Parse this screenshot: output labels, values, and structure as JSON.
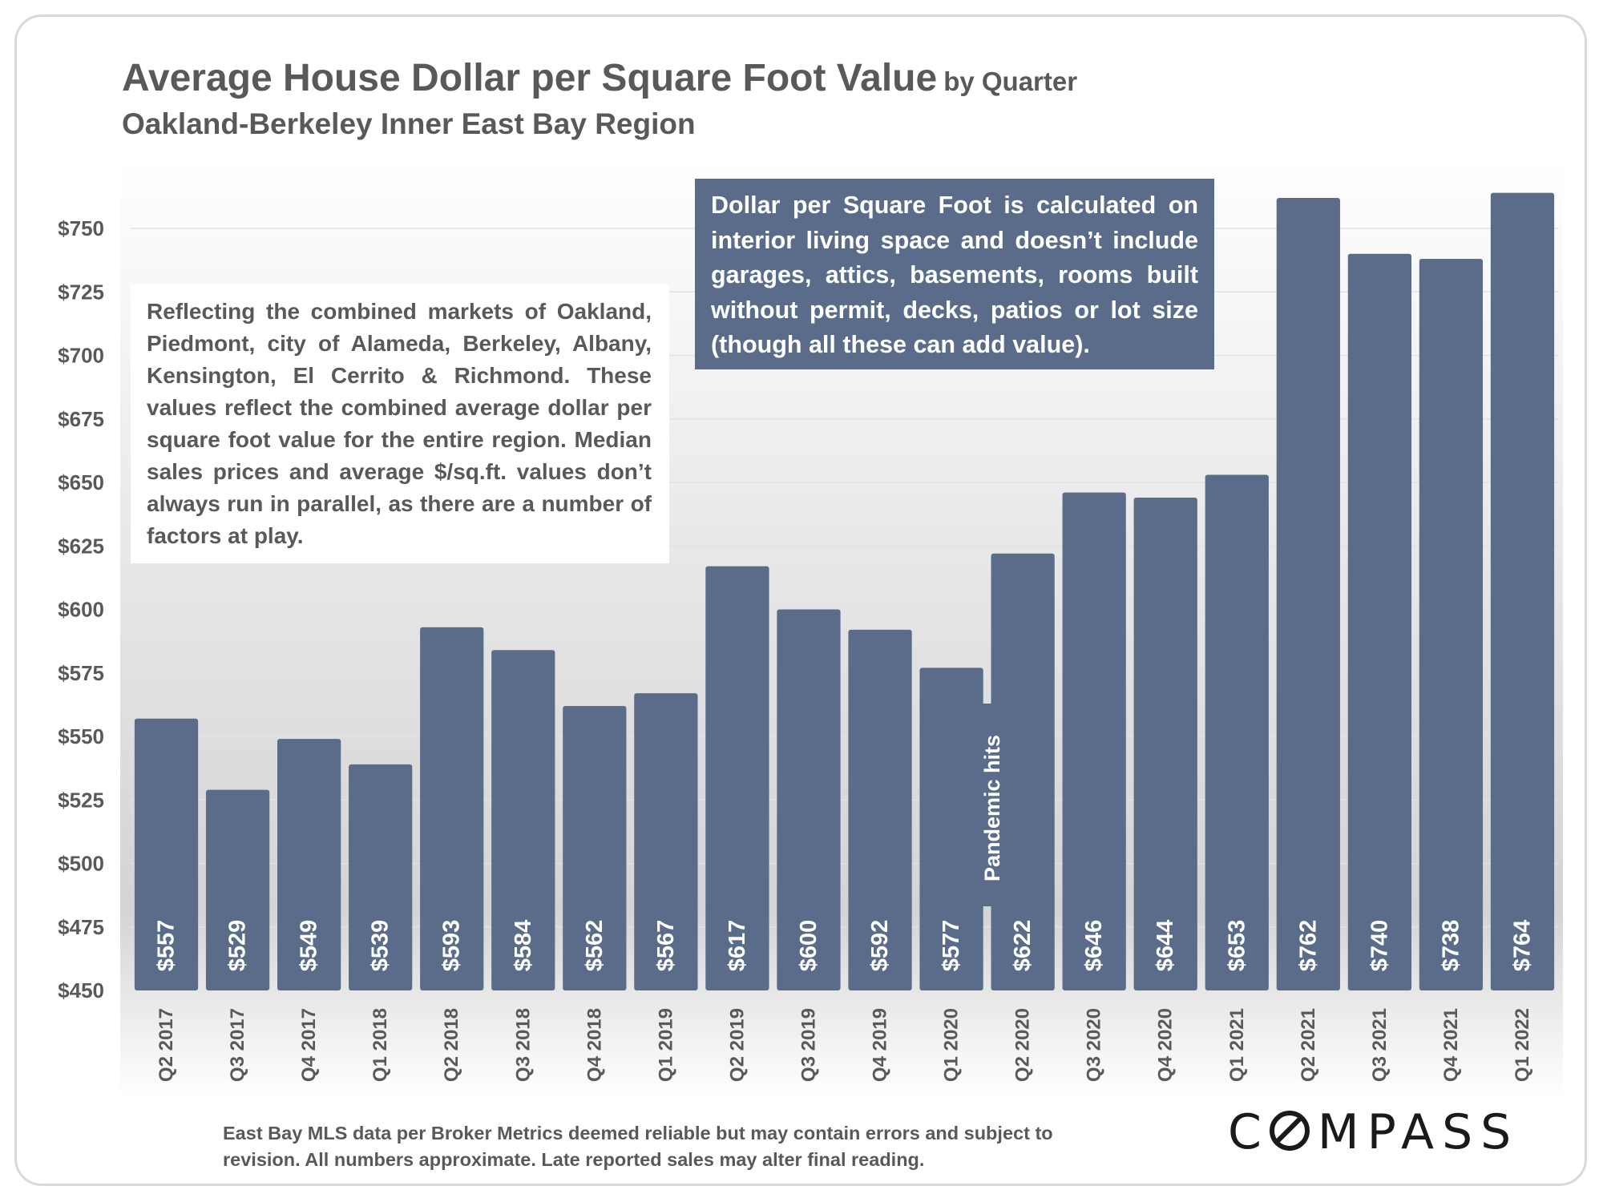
{
  "title": {
    "main": "Average House Dollar per Square Foot Value",
    "suffix": "by Quarter",
    "subtitle": "Oakland-Berkeley Inner East Bay Region"
  },
  "notes": {
    "left": "Reflecting the combined markets of Oakland, Piedmont, city of Alameda, Berkeley, Albany, Kensington, El Cerrito & Richmond. These values reflect the combined average dollar per square foot value for the entire region. Median sales prices and average $/sq.ft. values don’t always run in parallel, as there are a number of factors at play.",
    "right": "Dollar per Square Foot is calculated on interior living space and doesn’t include garages, attics, basements, rooms built without permit, decks, patios or lot size (though all these can add value)."
  },
  "annotation": "Pandemic hits",
  "footer": "East Bay MLS data per Broker Metrics deemed reliable but may contain errors and subject to revision. All numbers approximate. Late reported sales may alter final reading.",
  "logo": "COMPASS",
  "colors": {
    "bar": "#5a6c8a",
    "text": "#595959",
    "background_gradient": [
      "#ffffff",
      "#d6d6d6"
    ]
  },
  "chart_data": {
    "type": "bar",
    "title": "Average House Dollar per Square Foot Value by Quarter",
    "subtitle": "Oakland-Berkeley Inner East Bay Region",
    "categories": [
      "Q2 2017",
      "Q3 2017",
      "Q4 2017",
      "Q1 2018",
      "Q2 2018",
      "Q3 2018",
      "Q4 2018",
      "Q1 2019",
      "Q2 2019",
      "Q3 2019",
      "Q4 2019",
      "Q1 2020",
      "Q2 2020",
      "Q3 2020",
      "Q4 2020",
      "Q1 2021",
      "Q2 2021",
      "Q3 2021",
      "Q4 2021",
      "Q1 2022"
    ],
    "values": [
      557,
      529,
      549,
      539,
      593,
      584,
      562,
      567,
      617,
      600,
      592,
      577,
      622,
      646,
      644,
      653,
      762,
      740,
      738,
      764
    ],
    "value_labels": [
      "$557",
      "$529",
      "$549",
      "$539",
      "$593",
      "$584",
      "$562",
      "$567",
      "$617",
      "$600",
      "$592",
      "$577",
      "$622",
      "$646",
      "$644",
      "$653",
      "$762",
      "$740",
      "$738",
      "$764"
    ],
    "yticks": [
      "$450",
      "$475",
      "$500",
      "$525",
      "$550",
      "$575",
      "$600",
      "$625",
      "$650",
      "$675",
      "$700",
      "$725",
      "$750"
    ],
    "ylim": [
      450,
      770
    ],
    "xlabel": "",
    "ylabel": "",
    "grid": true,
    "legend": "none"
  }
}
